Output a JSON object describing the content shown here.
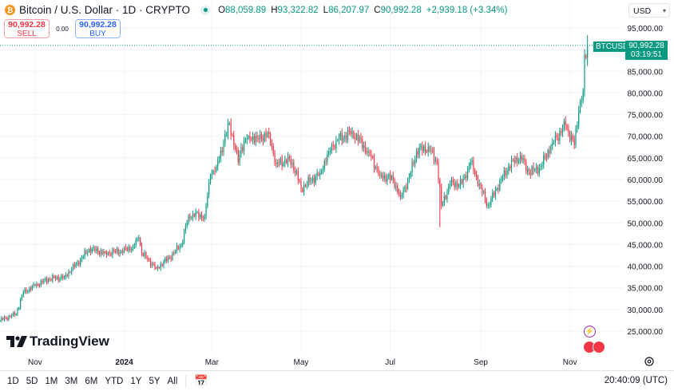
{
  "header": {
    "symbol_title": "Bitcoin / U.S. Dollar · 1D · CRYPTO",
    "open_label": "O",
    "open": "88,059.89",
    "high_label": "H",
    "high": "93,322.82",
    "low_label": "L",
    "low": "86,207.97",
    "close_label": "C",
    "close": "90,992.28",
    "change": "+2,939.18 (+3.34%)"
  },
  "trade": {
    "sell_price": "90,992.28",
    "sell_label": "SELL",
    "spread": "0.00",
    "buy_price": "90,992.28",
    "buy_label": "BUY"
  },
  "currency": "USD",
  "price_tag": {
    "symbol": "BTCUSD",
    "price": "90,992.28",
    "countdown": "03:19:51"
  },
  "logo_text": "TradingView",
  "ranges": [
    "1D",
    "5D",
    "1M",
    "3M",
    "6M",
    "YTD",
    "1Y",
    "5Y",
    "All"
  ],
  "clock": "20:40:09 (UTC)",
  "colors": {
    "up": "#089981",
    "down": "#f23645",
    "grid": "#f0f3fa"
  },
  "chart_data": {
    "type": "candlestick",
    "ylim": [
      25000,
      95000
    ],
    "y_ticks": [
      "95,000.00",
      "90,000.00",
      "85,000.00",
      "80,000.00",
      "75,000.00",
      "70,000.00",
      "65,000.00",
      "60,000.00",
      "55,000.00",
      "50,000.00",
      "45,000.00",
      "40,000.00",
      "35,000.00",
      "30,000.00",
      "25,000.00"
    ],
    "x_ticks": [
      {
        "label": "Nov",
        "date": "2023-11-01"
      },
      {
        "label": "2024",
        "date": "2024-01-01"
      },
      {
        "label": "Mar",
        "date": "2024-03-01"
      },
      {
        "label": "May",
        "date": "2024-05-01"
      },
      {
        "label": "Jul",
        "date": "2024-07-01"
      },
      {
        "label": "Sep",
        "date": "2024-09-01"
      },
      {
        "label": "Nov",
        "date": "2024-11-01"
      }
    ],
    "x_range": [
      "2023-10-08",
      "2024-11-13"
    ],
    "grid": true,
    "approx_closes": [
      [
        "2023-10-08",
        27500
      ],
      [
        "2023-10-19",
        29000
      ],
      [
        "2023-10-24",
        34000
      ],
      [
        "2023-11-01",
        35500
      ],
      [
        "2023-11-10",
        37000
      ],
      [
        "2023-11-21",
        37500
      ],
      [
        "2023-12-02",
        41500
      ],
      [
        "2023-12-08",
        44000
      ],
      [
        "2023-12-19",
        43000
      ],
      [
        "2023-12-30",
        43500
      ],
      [
        "2024-01-07",
        44500
      ],
      [
        "2024-01-11",
        46500
      ],
      [
        "2024-01-13",
        43000
      ],
      [
        "2024-01-23",
        39500
      ],
      [
        "2024-02-01",
        42000
      ],
      [
        "2024-02-09",
        45000
      ],
      [
        "2024-02-14",
        51500
      ],
      [
        "2024-02-17",
        52000
      ],
      [
        "2024-02-25",
        51500
      ],
      [
        "2024-02-29",
        61000
      ],
      [
        "2024-03-04",
        63000
      ],
      [
        "2024-03-09",
        68500
      ],
      [
        "2024-03-13",
        73000
      ],
      [
        "2024-03-19",
        64000
      ],
      [
        "2024-03-21",
        67500
      ],
      [
        "2024-03-26",
        70000
      ],
      [
        "2024-04-01",
        69500
      ],
      [
        "2024-04-09",
        70500
      ],
      [
        "2024-04-14",
        63500
      ],
      [
        "2024-04-20",
        64500
      ],
      [
        "2024-04-25",
        64000
      ],
      [
        "2024-05-01",
        58000
      ],
      [
        "2024-05-14",
        61500
      ],
      [
        "2024-05-20",
        66500
      ],
      [
        "2024-05-25",
        69000
      ],
      [
        "2024-06-05",
        71000
      ],
      [
        "2024-06-16",
        66500
      ],
      [
        "2024-06-24",
        61000
      ],
      [
        "2024-07-03",
        60000
      ],
      [
        "2024-07-08",
        56000
      ],
      [
        "2024-07-14",
        60500
      ],
      [
        "2024-07-19",
        66500
      ],
      [
        "2024-07-27",
        67500
      ],
      [
        "2024-08-02",
        64000
      ],
      [
        "2024-08-05",
        54000
      ],
      [
        "2024-08-11",
        59000
      ],
      [
        "2024-08-19",
        59000
      ],
      [
        "2024-08-25",
        64000
      ],
      [
        "2024-09-01",
        58000
      ],
      [
        "2024-09-06",
        54000
      ],
      [
        "2024-09-12",
        58000
      ],
      [
        "2024-09-20",
        63000
      ],
      [
        "2024-09-28",
        65500
      ],
      [
        "2024-10-04",
        61500
      ],
      [
        "2024-10-12",
        63000
      ],
      [
        "2024-10-20",
        68500
      ],
      [
        "2024-10-29",
        72500
      ],
      [
        "2024-11-04",
        68000
      ],
      [
        "2024-11-07",
        76000
      ],
      [
        "2024-11-10",
        80500
      ],
      [
        "2024-11-11",
        88700
      ],
      [
        "2024-11-12",
        88059.89
      ]
    ],
    "last_candle": {
      "date": "2024-11-13",
      "open": 88059.89,
      "high": 93322.82,
      "low": 86207.97,
      "close": 90992.28
    },
    "current_price_line": 90992.28
  }
}
